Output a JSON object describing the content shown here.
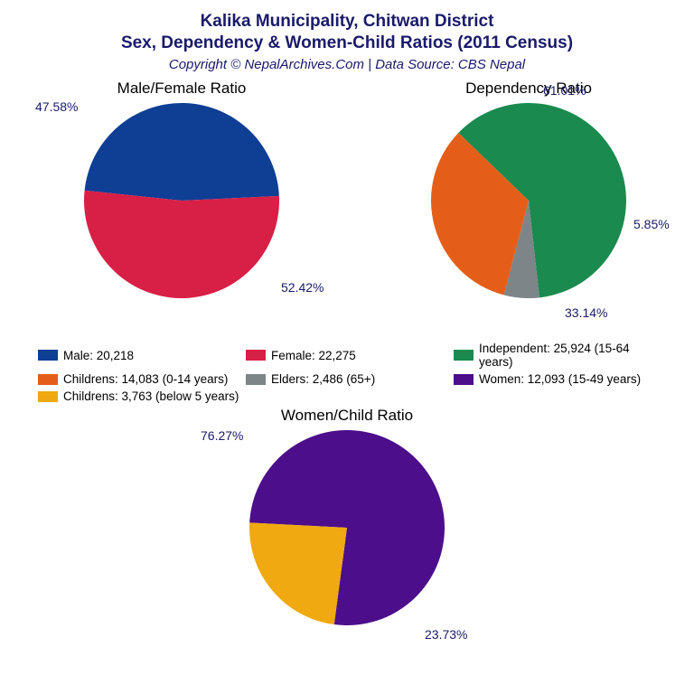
{
  "title_line1": "Kalika Municipality, Chitwan District",
  "title_line2": "Sex, Dependency & Women-Child Ratios (2011 Census)",
  "subtitle": "Copyright © NepalArchives.Com | Data Source: CBS Nepal",
  "colors": {
    "male": "#0f3e95",
    "female": "#d81f46",
    "children": "#e55e19",
    "elders": "#7d8589",
    "independent": "#1a8a4e",
    "women": "#4c0e8a",
    "children_u5": "#f0a910",
    "title": "#1a1a6a",
    "label": "#1a1a6a",
    "bg": "#ffffff"
  },
  "chart1": {
    "type": "pie",
    "title": "Male/Female Ratio",
    "radius": 108,
    "slices": [
      {
        "label": "47.58%",
        "value": 47.58,
        "color_key": "male"
      },
      {
        "label": "52.42%",
        "value": 52.42,
        "color_key": "female"
      }
    ],
    "start_angle_deg": -174,
    "label_fontsize": 14
  },
  "chart2": {
    "type": "pie",
    "title": "Dependency Ratio",
    "radius": 108,
    "slices": [
      {
        "label": "61.01%",
        "value": 61.01,
        "color_key": "independent"
      },
      {
        "label": "5.85%",
        "value": 5.85,
        "color_key": "elders"
      },
      {
        "label": "33.14%",
        "value": 33.14,
        "color_key": "children"
      }
    ],
    "start_angle_deg": -136,
    "label_fontsize": 14
  },
  "chart3": {
    "type": "pie",
    "title": "Women/Child Ratio",
    "radius": 108,
    "slices": [
      {
        "label": "76.27%",
        "value": 76.27,
        "color_key": "women"
      },
      {
        "label": "23.73%",
        "value": 23.73,
        "color_key": "children_u5"
      }
    ],
    "start_angle_deg": -177,
    "label_fontsize": 14
  },
  "legend": [
    {
      "color_key": "male",
      "text": "Male: 20,218"
    },
    {
      "color_key": "female",
      "text": "Female: 22,275"
    },
    {
      "color_key": "independent",
      "text": "Independent: 25,924 (15-64 years)"
    },
    {
      "color_key": "children",
      "text": "Childrens: 14,083 (0-14 years)"
    },
    {
      "color_key": "elders",
      "text": "Elders: 2,486 (65+)"
    },
    {
      "color_key": "women",
      "text": "Women: 12,093 (15-49 years)"
    },
    {
      "color_key": "children_u5",
      "text": "Childrens: 3,763 (below 5 years)"
    }
  ],
  "chart_title_fontsize": 17,
  "legend_fontsize": 13.5
}
